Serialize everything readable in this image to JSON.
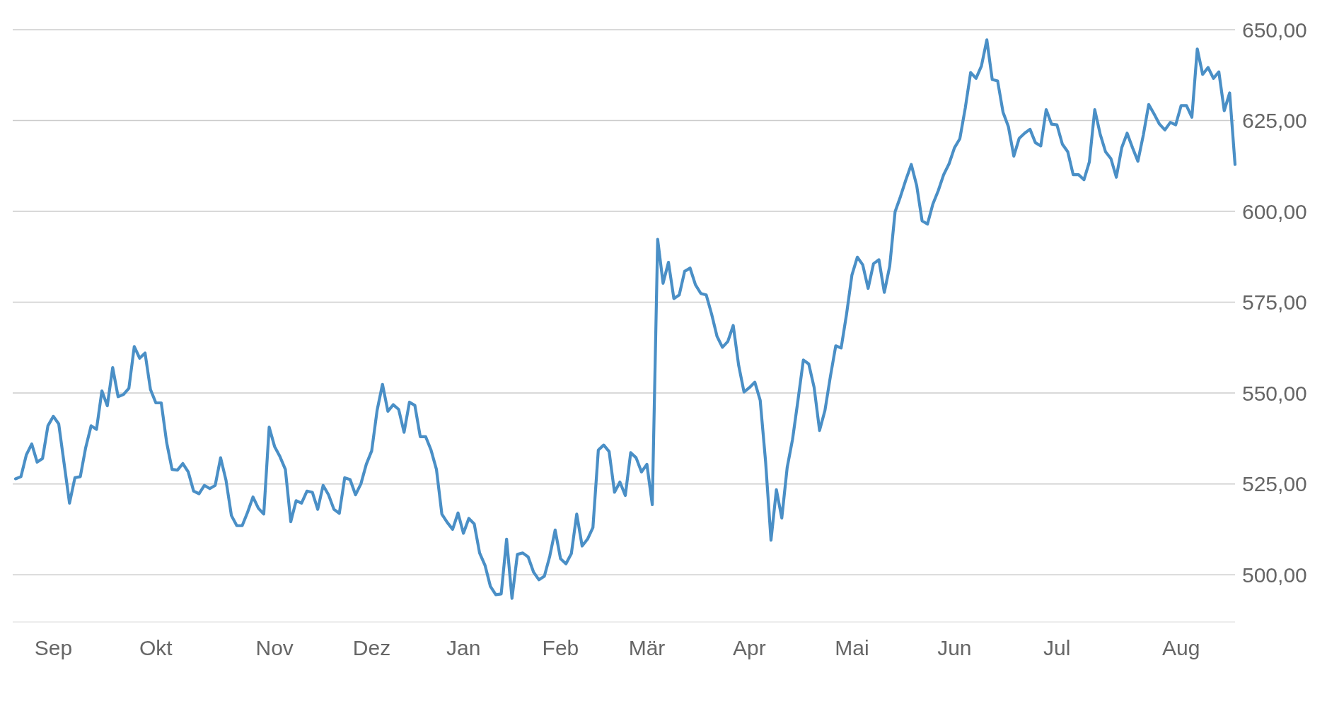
{
  "chart_data": {
    "type": "line",
    "categories": [
      null,
      null,
      null,
      null,
      null,
      null,
      null,
      "Sep",
      null,
      null,
      null,
      null,
      null,
      null,
      null,
      null,
      null,
      null,
      null,
      null,
      null,
      null,
      null,
      null,
      null,
      null,
      "Okt",
      null,
      null,
      null,
      null,
      null,
      null,
      null,
      null,
      null,
      null,
      null,
      null,
      null,
      null,
      null,
      null,
      null,
      null,
      null,
      null,
      null,
      "Nov",
      null,
      null,
      null,
      null,
      null,
      null,
      null,
      null,
      null,
      null,
      null,
      null,
      null,
      null,
      null,
      null,
      null,
      "Dez",
      null,
      null,
      null,
      null,
      null,
      null,
      null,
      null,
      null,
      null,
      null,
      null,
      null,
      null,
      null,
      null,
      "Jan",
      null,
      null,
      null,
      null,
      null,
      null,
      null,
      null,
      null,
      null,
      null,
      null,
      null,
      null,
      null,
      null,
      null,
      "Feb",
      null,
      null,
      null,
      null,
      null,
      null,
      null,
      null,
      null,
      null,
      null,
      null,
      null,
      null,
      null,
      "Mär",
      null,
      null,
      null,
      null,
      null,
      null,
      null,
      null,
      null,
      null,
      null,
      null,
      null,
      null,
      null,
      null,
      null,
      null,
      "Apr",
      null,
      null,
      null,
      null,
      null,
      null,
      null,
      null,
      null,
      null,
      null,
      null,
      null,
      null,
      null,
      null,
      null,
      null,
      "Mai",
      null,
      null,
      null,
      null,
      null,
      null,
      null,
      null,
      null,
      null,
      null,
      null,
      null,
      null,
      null,
      null,
      null,
      null,
      "Jun",
      null,
      null,
      null,
      null,
      null,
      null,
      null,
      null,
      null,
      null,
      null,
      null,
      null,
      null,
      null,
      null,
      null,
      null,
      "Jul",
      null,
      null,
      null,
      null,
      null,
      null,
      null,
      null,
      null,
      null,
      null,
      null,
      null,
      null,
      null,
      null,
      null,
      null,
      null,
      null,
      null,
      null,
      "Aug",
      null,
      null,
      null,
      null,
      null,
      null,
      null,
      null,
      null,
      null
    ],
    "series": [
      {
        "color": "#4a8fc6",
        "values": [
          526.4,
          527,
          533,
          536,
          531,
          532,
          541,
          543.6,
          541.5,
          530.6,
          519.7,
          526.7,
          527,
          535,
          541,
          540,
          550.6,
          546.5,
          557,
          549,
          549.6,
          551.3,
          562.8,
          559.6,
          561,
          551,
          547.3,
          547.3,
          536.4,
          529,
          528.8,
          530.6,
          528.3,
          523,
          522.3,
          524.6,
          523.7,
          524.6,
          532.2,
          526,
          516.3,
          513.5,
          513.5,
          517.2,
          521.4,
          518.3,
          516.7,
          540.6,
          535.3,
          532.5,
          529,
          514.6,
          520.4,
          519.7,
          523,
          522.7,
          518,
          524.6,
          522,
          518,
          516.9,
          526.7,
          526.2,
          522,
          525,
          530.4,
          534.1,
          545.2,
          552.4,
          545,
          546.8,
          545.5,
          539.2,
          547.5,
          546.6,
          538,
          538,
          534.3,
          529,
          516.7,
          514.4,
          512.5,
          517,
          511.4,
          515.5,
          514,
          506,
          502.6,
          496.8,
          494.5,
          494.7,
          509.8,
          493.5,
          505.6,
          506,
          504.9,
          500.7,
          498.6,
          499.6,
          505.1,
          512.3,
          504.4,
          503,
          505.8,
          516.7,
          507.9,
          509.8,
          513,
          534.3,
          535.7,
          533.9,
          522.7,
          525.5,
          521.8,
          533.6,
          532.2,
          528.3,
          530.4,
          519.3,
          592.3,
          580.2,
          586,
          576,
          577,
          583.5,
          584.4,
          579.8,
          577.4,
          577,
          571.7,
          565.6,
          562.6,
          564.2,
          568.6,
          557.7,
          550.3,
          551.5,
          553,
          548,
          531.1,
          509.5,
          523.4,
          515.6,
          529.5,
          537.3,
          548,
          559.1,
          558,
          551.5,
          539.7,
          545.2,
          554.5,
          563,
          562.4,
          571.7,
          582.5,
          587.4,
          585.3,
          578.8,
          585.6,
          586.7,
          577.7,
          584.9,
          599.9,
          604.1,
          608.7,
          612.9,
          607.1,
          597.4,
          596.5,
          602,
          605.7,
          610.1,
          613.1,
          617.5,
          620,
          628.4,
          638.2,
          636.6,
          640,
          647.2,
          636.3,
          635.9,
          627.3,
          623.3,
          615.2,
          620.1,
          621.5,
          622.6,
          618.9,
          618,
          628,
          624,
          623.8,
          618.5,
          616.4,
          610.1,
          610.1,
          608.7,
          613.6,
          628,
          621.3,
          616.4,
          614.5,
          609.4,
          617.5,
          621.5,
          617.5,
          613.8,
          621,
          629.4,
          626.8,
          624,
          622.4,
          624.5,
          623.8,
          629.1,
          629.1,
          625.9,
          644.7,
          637.7,
          639.6,
          636.6,
          638.4,
          627.7,
          632.6,
          612.9
        ]
      }
    ],
    "ylim": [
      487,
      650
    ],
    "yticks": [
      {
        "value": 500,
        "label": "500,00"
      },
      {
        "value": 525,
        "label": "525,00"
      },
      {
        "value": 550,
        "label": "550,00"
      },
      {
        "value": 575,
        "label": "575,00"
      },
      {
        "value": 600,
        "label": "600,00"
      },
      {
        "value": 625,
        "label": "625,00"
      },
      {
        "value": 650,
        "label": "650,00"
      }
    ],
    "grid": "y",
    "line_style": "solid",
    "marker": "none"
  }
}
